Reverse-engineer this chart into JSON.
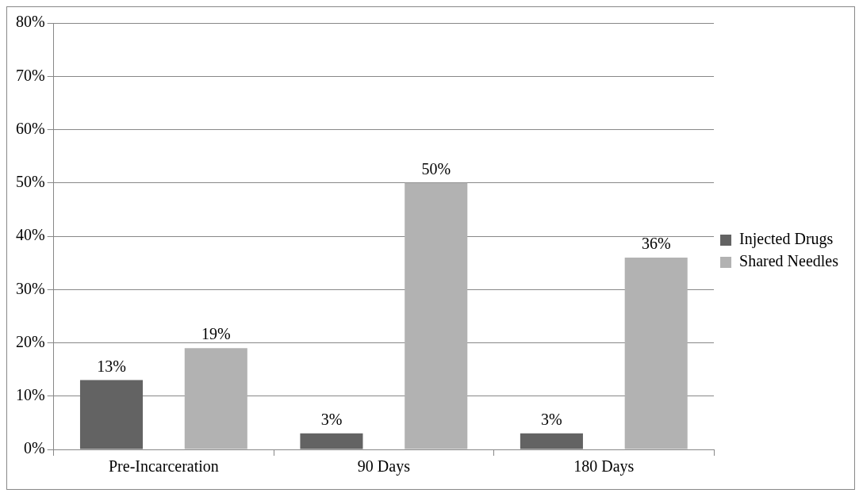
{
  "chart_data": {
    "type": "bar",
    "categories": [
      "Pre-Incarceration",
      "90 Days",
      "180 Days"
    ],
    "series": [
      {
        "name": "Injected Drugs",
        "color": "#636363",
        "values": [
          13,
          3,
          3
        ],
        "value_labels": [
          "13%",
          "3%",
          "3%"
        ]
      },
      {
        "name": "Shared Needles",
        "color": "#b2b2b2",
        "values": [
          19,
          50,
          36
        ],
        "value_labels": [
          "19%",
          "50%",
          "36%"
        ]
      }
    ],
    "ylim": [
      0,
      80
    ],
    "yticks": [
      {
        "value": 0,
        "label": "0%"
      },
      {
        "value": 10,
        "label": "10%"
      },
      {
        "value": 20,
        "label": "20%"
      },
      {
        "value": 30,
        "label": "30%"
      },
      {
        "value": 40,
        "label": "40%"
      },
      {
        "value": 50,
        "label": "50%"
      },
      {
        "value": 60,
        "label": "60%"
      },
      {
        "value": 70,
        "label": "70%"
      },
      {
        "value": 80,
        "label": "80%"
      }
    ],
    "grid": "y",
    "legend": "right"
  }
}
